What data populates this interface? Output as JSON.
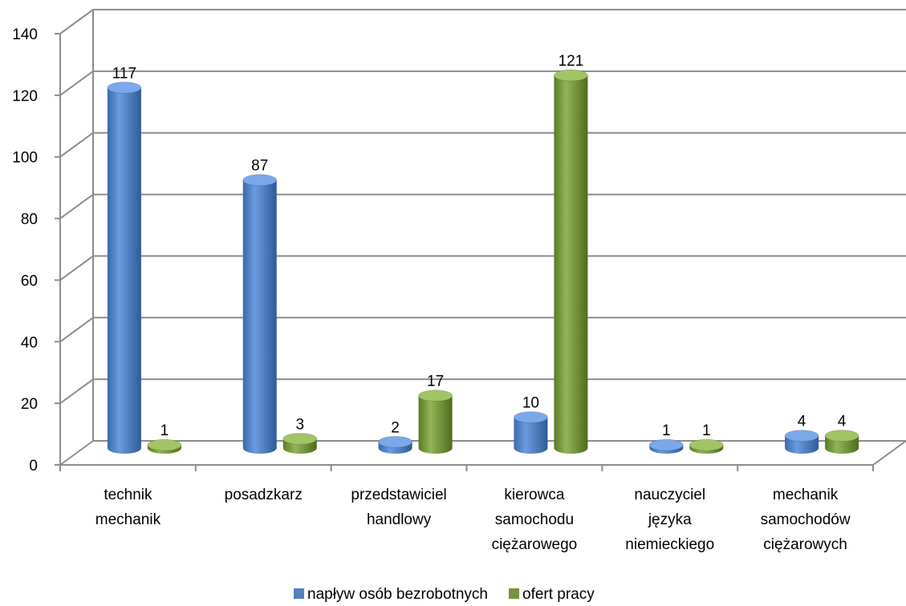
{
  "chart_data": {
    "type": "bar",
    "categories": [
      [
        "technik",
        "mechanik"
      ],
      [
        "posadzkarz"
      ],
      [
        "przedstawiciel",
        "handlowy"
      ],
      [
        "kierowca",
        "samochodu",
        "ciężarowego"
      ],
      [
        "nauczyciel",
        "języka",
        "niemieckiego"
      ],
      [
        "mechanik",
        "samochodów",
        "ciężarowych"
      ]
    ],
    "series": [
      {
        "name": "napływ osób bezrobotnych",
        "color": "#4F81BD",
        "values": [
          117,
          87,
          2,
          10,
          1,
          4
        ]
      },
      {
        "name": "ofert pracy",
        "color": "#77933C",
        "values": [
          1,
          3,
          17,
          121,
          1,
          4
        ]
      }
    ],
    "yticks": [
      "0",
      "20",
      "40",
      "60",
      "80",
      "100",
      "120",
      "140"
    ],
    "ylim": [
      0,
      140
    ],
    "grid": true,
    "legend": "bottom"
  }
}
